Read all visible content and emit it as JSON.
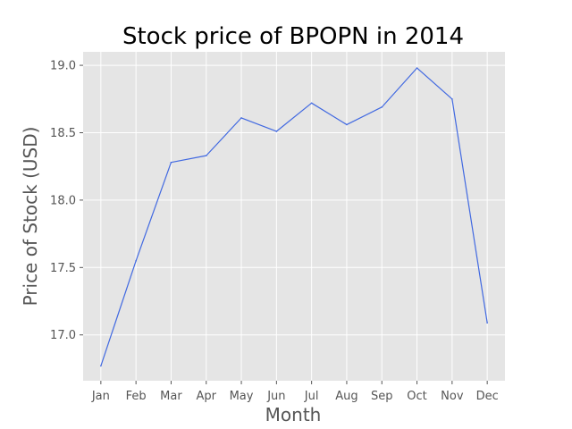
{
  "chart_data": {
    "type": "line",
    "title": "Stock price of BPOPN in 2014",
    "xlabel": "Month",
    "ylabel": "Price of Stock (USD)",
    "categories": [
      "Jan",
      "Feb",
      "Mar",
      "Apr",
      "May",
      "Jun",
      "Jul",
      "Aug",
      "Sep",
      "Oct",
      "Nov",
      "Dec"
    ],
    "series": [
      {
        "values": [
          16.77,
          17.55,
          18.28,
          18.33,
          18.61,
          18.51,
          18.72,
          18.56,
          18.69,
          18.98,
          18.75,
          17.09
        ],
        "color": "#4169e1"
      }
    ],
    "ylim": [
      16.66,
      19.1
    ],
    "yticks": [
      17.0,
      17.5,
      18.0,
      18.5,
      19.0
    ],
    "ytick_labels": [
      "17.0",
      "17.5",
      "18.0",
      "18.5",
      "19.0"
    ],
    "grid": true,
    "style": {
      "plot_background": "#e5e5e5",
      "grid_color": "#ffffff"
    }
  }
}
